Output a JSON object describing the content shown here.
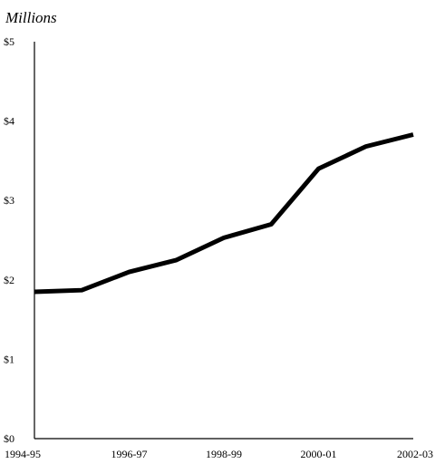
{
  "chart_data": {
    "type": "line",
    "unit_label": "Millions",
    "x_tick_labels": [
      "1994-95",
      "1996-97",
      "1998-99",
      "2000-01",
      "2002-03"
    ],
    "y_tick_labels": [
      "$0",
      "$1",
      "$2",
      "$3",
      "$4",
      "$5"
    ],
    "y_ticks": [
      0,
      1,
      2,
      3,
      4,
      5
    ],
    "ylim": [
      0,
      5
    ],
    "x": [
      "1994-95",
      "1995-96",
      "1996-97",
      "1997-98",
      "1998-99",
      "1999-00",
      "2000-01",
      "2001-02",
      "2002-03"
    ],
    "series": [
      {
        "values": [
          1.85,
          1.87,
          2.1,
          2.25,
          2.53,
          2.7,
          3.4,
          3.68,
          3.83
        ]
      }
    ],
    "grid": false,
    "legend": "none"
  }
}
